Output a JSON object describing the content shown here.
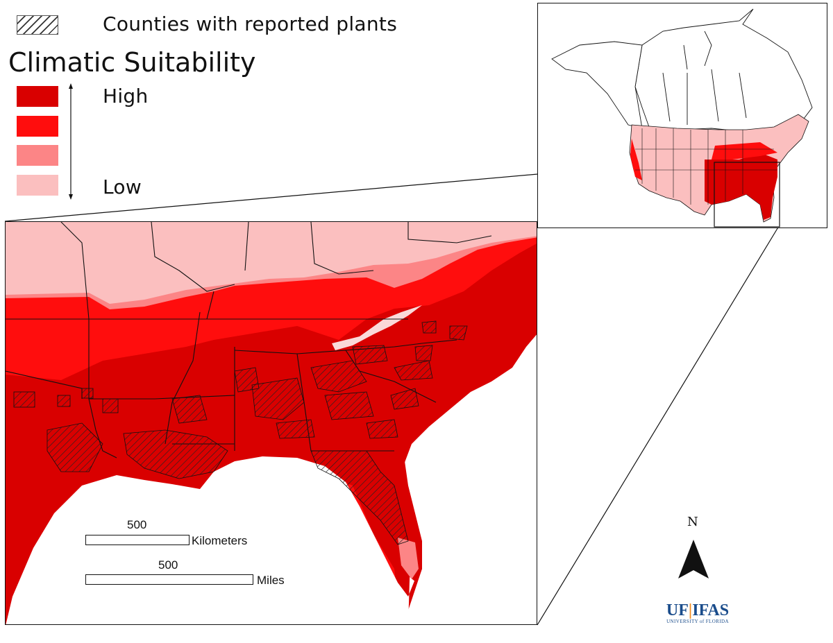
{
  "legend": {
    "hatch_label": "Counties with reported plants",
    "title": "Climatic Suitability",
    "high_label": "High",
    "low_label": "Low",
    "colors": [
      "#d90000",
      "#ff0d0d",
      "#fc8586",
      "#fbbfbf"
    ]
  },
  "scale_bar": {
    "km_value": "500",
    "km_unit": "Kilometers",
    "mi_value": "500",
    "mi_unit": "Miles"
  },
  "north_arrow": {
    "label": "N"
  },
  "logo": {
    "main_uf": "UF",
    "main_ifas": "IFAS",
    "sub": "UNIVERSITY of FLORIDA"
  }
}
